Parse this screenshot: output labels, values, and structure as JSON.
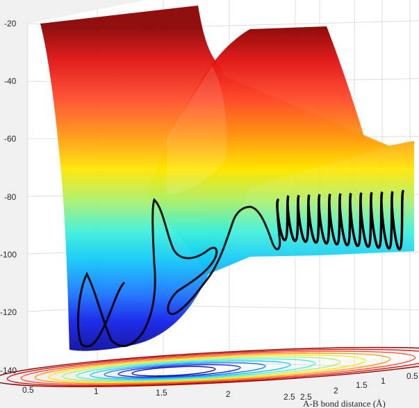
{
  "chart_data": {
    "type": "surface",
    "title": "",
    "xlabel": "A-B bond distance (Å)",
    "ylabel": "",
    "zlabel": "",
    "xlim": [
      0.5,
      2.5
    ],
    "ylim": [
      0.5,
      2.5
    ],
    "zlim": [
      -140,
      -20
    ],
    "x_ticks": [
      "0.5",
      "1",
      "1.5",
      "2",
      "2.5"
    ],
    "y_ticks": [
      "2.5",
      "2",
      "1.5",
      "1",
      "0.5"
    ],
    "z_ticks": [
      "-20",
      "-40",
      "-60",
      "-80",
      "-100",
      "-120",
      "-140"
    ],
    "surface": {
      "well_minimum": -135,
      "reactant_plateau": -100,
      "repulsive_wall_max": -20,
      "colormap": "jet"
    },
    "trajectory": {
      "name": "",
      "oscillation_count": 12,
      "end_energy": -100,
      "color": "#000000"
    },
    "grid": true,
    "colors": {
      "figure_bg": "#f0f0f0",
      "axes_bg": "#ffffff",
      "grid": "#dcdcdc",
      "trajectory": "#000000"
    }
  }
}
